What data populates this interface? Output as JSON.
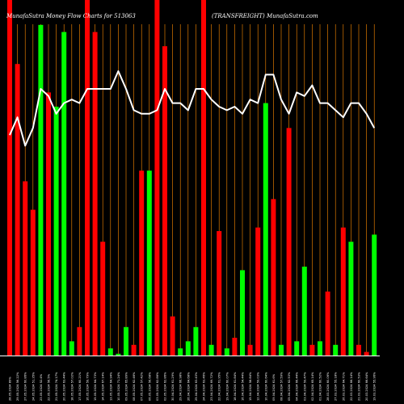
{
  "title_left": "MunafaSutra  Money Flow  Charts for 513063",
  "title_right": "(TRANSFREIGHT) MunafaSutra.com",
  "colors": {
    "background": "#000000",
    "up": "#00ff00",
    "down": "#ff0000",
    "grid": "#ff8c00",
    "line": "#ffffff"
  },
  "chart_data": {
    "type": "bar",
    "categories": [
      "28.05.2024 89%",
      "29.05.2024 56.22%",
      "27.05.2024 60.86%",
      "24.05.2024 51.35%",
      "23.05.2024 52.4%",
      "22.05.2024 56.5%",
      "21.05.2024 74.17%",
      "20.05.2024 63.44%",
      "18.05.2024 57.02%",
      "17.05.2024 60.21%",
      "16.05.2024 59.79%",
      "15.05.2024 64.73%",
      "14.05.2024 67.14%",
      "13.05.2024 64.94%",
      "10.05.2024 71.24%",
      "09.05.2024 65.89%",
      "08.05.2024 62.46%",
      "07.05.2024 57.42%",
      "06.05.2024 56.68%",
      "03.05.2024 62.86%",
      "02.05.2024 62.86%",
      "30.04.2024 61.29%",
      "29.04.2024 66.98%",
      "26.04.2024 64.68%",
      "25.04.2024 63.43%",
      "24.04.2024 63.46%",
      "23.04.2024 69.72%",
      "22.04.2024 61.95%",
      "19.04.2024 60.07%",
      "18.04.2024 61.84%",
      "16.04.2024 54.44%",
      "15.04.2024 58.84%",
      "12.04.2024 59.03%",
      "10.04.2024 60.64%",
      "09.04.2024 61.6%",
      "08.04.2024 57.59%",
      "05.04.2024 62.53%",
      "04.04.2024 66.44%",
      "03.04.2024 59.47%",
      "02.04.2024 65.14%",
      "01.04.2024 60.52%",
      "28.03.2024 60.06%",
      "27.03.2024 55.18%",
      "26.03.2024 64.71%",
      "22.03.2024 66.14%",
      "21.03.2024 60.53%",
      "20.03.2024 66.64%",
      "19.03.2024 55.96%"
    ],
    "values": [
      100,
      82,
      49,
      41,
      93,
      74,
      70,
      91,
      4,
      8,
      100,
      91,
      32,
      2,
      0.5,
      8,
      3,
      52,
      52,
      100,
      87,
      11,
      2,
      4,
      8,
      100,
      3,
      35,
      2,
      5,
      24,
      3,
      36,
      71,
      44,
      3,
      64,
      4,
      25,
      3,
      4,
      18,
      3,
      36,
      32,
      3,
      1,
      34
    ],
    "colors": [
      "down",
      "down",
      "down",
      "down",
      "up",
      "down",
      "up",
      "up",
      "up",
      "down",
      "down",
      "down",
      "down",
      "up",
      "up",
      "up",
      "down",
      "down",
      "up",
      "down",
      "down",
      "down",
      "up",
      "up",
      "up",
      "down",
      "up",
      "down",
      "up",
      "down",
      "up",
      "down",
      "down",
      "up",
      "down",
      "up",
      "down",
      "up",
      "up",
      "down",
      "up",
      "down",
      "up",
      "down",
      "up",
      "down",
      "down",
      "up"
    ],
    "line": [
      62,
      67,
      59,
      64,
      75,
      73,
      68,
      71,
      72,
      71,
      75,
      75,
      75,
      75,
      80,
      75,
      69,
      68,
      68,
      69,
      75,
      71,
      71,
      69,
      75,
      75,
      72,
      70,
      69,
      70,
      68,
      72,
      71,
      79,
      79,
      72,
      68,
      74,
      73,
      76,
      71,
      71,
      69,
      67,
      71,
      71,
      68,
      64
    ],
    "ylim": [
      0,
      100
    ]
  }
}
